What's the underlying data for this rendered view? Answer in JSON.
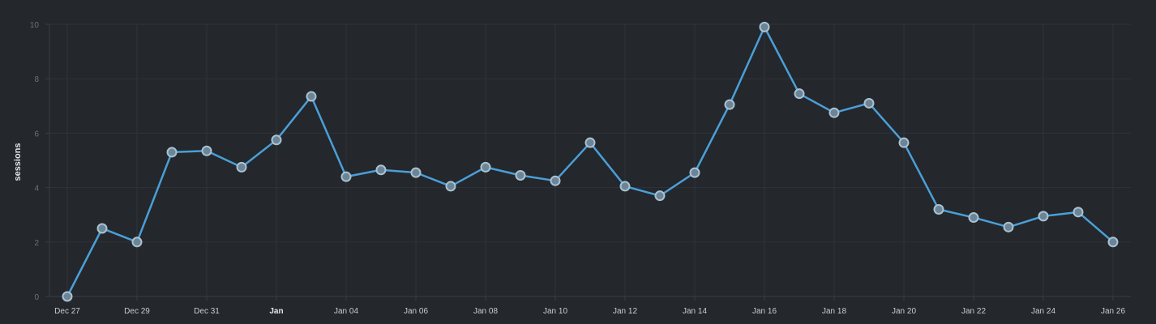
{
  "chart_data": {
    "type": "line",
    "title": "",
    "xlabel": "",
    "ylabel": "sessions",
    "ylim": [
      0,
      10
    ],
    "y_ticks": [
      0,
      2,
      4,
      6,
      8,
      10
    ],
    "grid": true,
    "x_tick_labels": [
      {
        "index": 0,
        "label": "Dec 27"
      },
      {
        "index": 2,
        "label": "Dec 29"
      },
      {
        "index": 4,
        "label": "Dec 31"
      },
      {
        "index": 6,
        "label": "Jan",
        "bold": true
      },
      {
        "index": 8,
        "label": "Jan 04"
      },
      {
        "index": 10,
        "label": "Jan 06"
      },
      {
        "index": 12,
        "label": "Jan 08"
      },
      {
        "index": 14,
        "label": "Jan 10"
      },
      {
        "index": 16,
        "label": "Jan 12"
      },
      {
        "index": 18,
        "label": "Jan 14"
      },
      {
        "index": 20,
        "label": "Jan 16"
      },
      {
        "index": 22,
        "label": "Jan 18"
      },
      {
        "index": 24,
        "label": "Jan 20"
      },
      {
        "index": 26,
        "label": "Jan 22"
      },
      {
        "index": 28,
        "label": "Jan 24"
      },
      {
        "index": 30,
        "label": "Jan 26"
      }
    ],
    "x": [
      "Dec 27",
      "Dec 28",
      "Dec 29",
      "Dec 30",
      "Dec 31",
      "Jan 01",
      "Jan 02",
      "Jan 03",
      "Jan 04",
      "Jan 05",
      "Jan 06",
      "Jan 07",
      "Jan 08",
      "Jan 09",
      "Jan 10",
      "Jan 11",
      "Jan 12",
      "Jan 13",
      "Jan 14",
      "Jan 15",
      "Jan 16",
      "Jan 17",
      "Jan 18",
      "Jan 19",
      "Jan 20",
      "Jan 21",
      "Jan 22",
      "Jan 23",
      "Jan 24",
      "Jan 25",
      "Jan 26"
    ],
    "series": [
      {
        "color": "#4a9fd8",
        "values": [
          0.0,
          2.5,
          2.0,
          5.3,
          5.35,
          4.75,
          5.75,
          7.35,
          4.4,
          4.65,
          4.55,
          4.05,
          4.75,
          4.45,
          4.25,
          5.65,
          4.05,
          3.7,
          4.55,
          7.05,
          9.9,
          7.45,
          6.75,
          7.1,
          5.65,
          3.2,
          2.9,
          2.55,
          2.95,
          3.1,
          2.0
        ]
      }
    ]
  }
}
